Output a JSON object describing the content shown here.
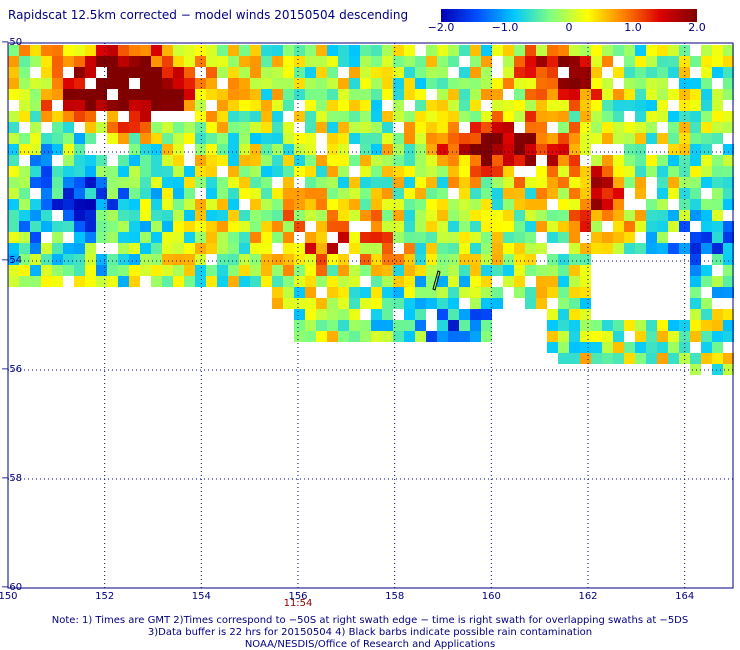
{
  "title": "Rapidscat 12.5km corrected − model winds 20150504 descending",
  "colorbar": {
    "ticks": [
      "−2.0",
      "−1.0",
      "0",
      "1.0",
      "2.0"
    ],
    "tick_values": [
      -2.0,
      -1.0,
      0,
      1.0,
      2.0
    ],
    "range": [
      -2.0,
      2.0
    ],
    "colors": [
      "#0000b4",
      "#0050ff",
      "#00c8ff",
      "#80ff80",
      "#ffff00",
      "#ff8000",
      "#dd0000",
      "#800000"
    ]
  },
  "axes": {
    "x_ticks": [
      "150",
      "152",
      "154",
      "156",
      "158",
      "160",
      "162",
      "164"
    ],
    "x_values": [
      150,
      152,
      154,
      156,
      158,
      160,
      162,
      164
    ],
    "x_range": [
      150,
      165
    ],
    "y_ticks": [
      "−50",
      "−54",
      "−56",
      "−58",
      "−60"
    ],
    "y_values": [
      -50,
      -54,
      -56,
      -58,
      -60
    ],
    "y_unlabeled_ticks": [
      -52
    ],
    "y_range": [
      -60,
      -50
    ],
    "grid": "dotted"
  },
  "time_label": "11:54",
  "time_label_lon": 156,
  "notes": [
    "Note: 1) Times are GMT 2)Times correspond to −50S at right swath edge − time is right swath for overlapping swaths at −5DS",
    "3)Data buffer is 22 hrs for 20150504 4) Black barbs indicate possible rain contamination",
    "NOAA/NESDIS/Office of Research and Applications"
  ]
}
